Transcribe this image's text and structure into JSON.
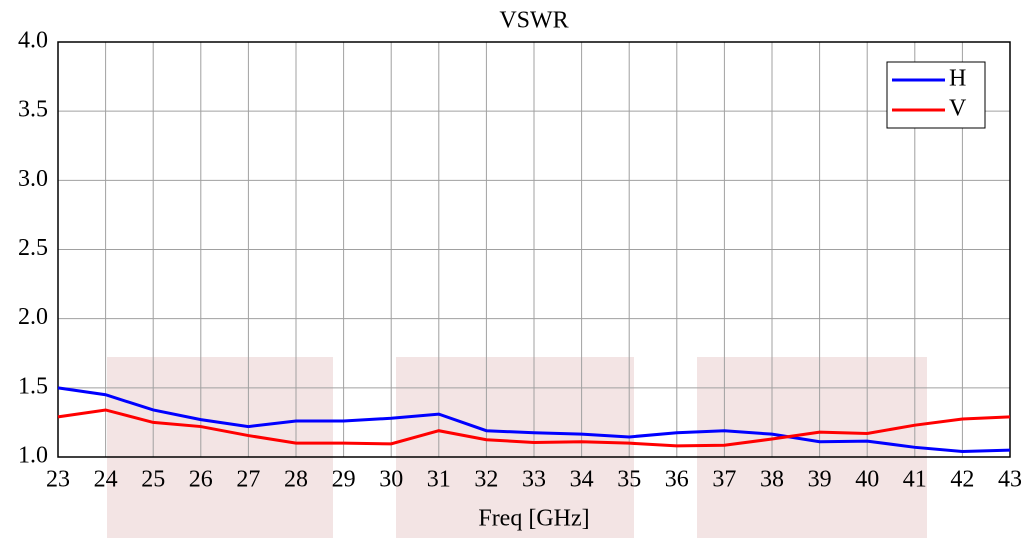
{
  "chart_data": {
    "type": "line",
    "title": "VSWR",
    "x_label": "Freq [GHz]",
    "x": [
      23,
      24,
      25,
      26,
      27,
      28,
      29,
      30,
      31,
      32,
      33,
      34,
      35,
      36,
      37,
      38,
      39,
      40,
      41,
      42,
      43
    ],
    "series": [
      {
        "name": "H",
        "color": "#0000ff",
        "values": [
          1.5,
          1.45,
          1.34,
          1.27,
          1.22,
          1.26,
          1.26,
          1.28,
          1.31,
          1.19,
          1.175,
          1.165,
          1.145,
          1.175,
          1.19,
          1.165,
          1.11,
          1.115,
          1.07,
          1.04,
          1.05
        ]
      },
      {
        "name": "V",
        "color": "#ff0000",
        "values": [
          1.29,
          1.34,
          1.25,
          1.22,
          1.155,
          1.1,
          1.1,
          1.095,
          1.19,
          1.125,
          1.105,
          1.11,
          1.1,
          1.08,
          1.085,
          1.13,
          1.18,
          1.17,
          1.23,
          1.275,
          1.29
        ]
      }
    ],
    "xlim": [
      23,
      43
    ],
    "xticks": [
      23,
      24,
      25,
      26,
      27,
      28,
      29,
      30,
      31,
      32,
      33,
      34,
      35,
      36,
      37,
      38,
      39,
      40,
      41,
      42,
      43
    ],
    "ylim": [
      1.0,
      4.0
    ],
    "yticks": [
      {
        "value": 1.0,
        "label": "1.0"
      },
      {
        "value": 1.5,
        "label": "1.5"
      },
      {
        "value": 2.0,
        "label": "2.0"
      },
      {
        "value": 2.5,
        "label": "2.5"
      },
      {
        "value": 3.0,
        "label": "3.0"
      },
      {
        "value": 3.5,
        "label": "3.5"
      },
      {
        "value": 4.0,
        "label": "4.0"
      }
    ],
    "grid": true,
    "legend": "upper right"
  }
}
